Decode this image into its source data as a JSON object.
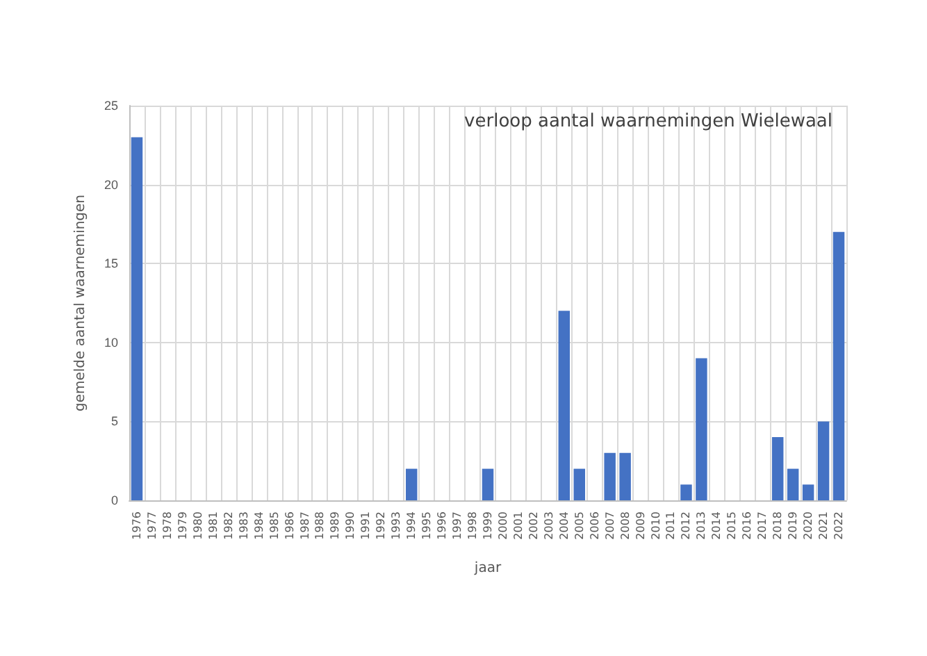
{
  "chart_data": {
    "type": "bar",
    "title": "verloop aantal waarnemingen Wielewaal",
    "xlabel": "jaar",
    "ylabel": "gemelde aantal waarnemingen",
    "categories": [
      "1976",
      "1977",
      "1978",
      "1979",
      "1980",
      "1981",
      "1982",
      "1983",
      "1984",
      "1985",
      "1986",
      "1987",
      "1988",
      "1989",
      "1990",
      "1991",
      "1992",
      "1993",
      "1994",
      "1995",
      "1996",
      "1997",
      "1998",
      "1999",
      "2000",
      "2001",
      "2002",
      "2003",
      "2004",
      "2005",
      "2006",
      "2007",
      "2008",
      "2009",
      "2010",
      "2011",
      "2012",
      "2013",
      "2014",
      "2015",
      "2016",
      "2017",
      "2018",
      "2019",
      "2020",
      "2021",
      "2022"
    ],
    "values": [
      23,
      0,
      0,
      0,
      0,
      0,
      0,
      0,
      0,
      0,
      0,
      0,
      0,
      0,
      0,
      0,
      0,
      0,
      2,
      0,
      0,
      0,
      0,
      2,
      0,
      0,
      0,
      0,
      12,
      2,
      0,
      3,
      3,
      0,
      0,
      0,
      1,
      9,
      0,
      0,
      0,
      0,
      4,
      2,
      1,
      5,
      17
    ],
    "color": "#4472c4",
    "ylim": [
      0,
      25
    ],
    "yticks": [
      0,
      5,
      10,
      15,
      20,
      25
    ],
    "grid": true
  }
}
